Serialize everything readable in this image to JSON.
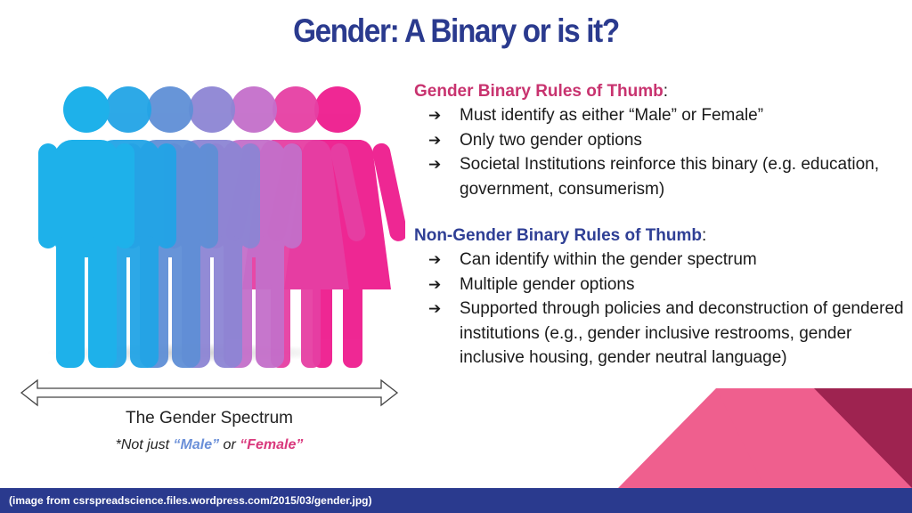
{
  "title": "Gender: A Binary or is it?",
  "illustration": {
    "figure_colors": [
      "#1eb1ea",
      "#22a4e6",
      "#5f8fd6",
      "#8d85d4",
      "#c46fca",
      "#e63fa3",
      "#ee1c8e"
    ]
  },
  "spectrum": {
    "label": "The Gender Spectrum",
    "note_prefix": "*Not just ",
    "note_male": "“Male”",
    "note_middle": " or ",
    "note_female": "“Female”"
  },
  "binary_rules": {
    "heading": "Gender Binary Rules of Thumb",
    "colon": ":",
    "arrow": "➔",
    "items": [
      "Must identify as either “Male” or Female”",
      "Only two gender options",
      "Societal Institutions reinforce this binary (e.g. education, government, consumerism)"
    ]
  },
  "nonbinary_rules": {
    "heading": "Non-Gender Binary Rules of Thumb",
    "colon": ":",
    "arrow": "➔",
    "items": [
      "Can identify within the gender spectrum",
      "Multiple gender options",
      "Supported through policies and deconstruction of gendered institutions (e.g., gender inclusive restrooms, gender inclusive housing, gender neutral language)"
    ]
  },
  "footer": {
    "text": "(image from csrspreadscience.files.wordpress.com/2015/03/gender.jpg)"
  },
  "colors": {
    "title": "#2a3a8e",
    "binary_heading": "#c8336f",
    "nonbinary_heading": "#2f3f95",
    "footer_bg": "#2a3a8e",
    "deco_light": "#ef5f8e",
    "deco_mid": "#d94a7c",
    "deco_dark": "#9e2350"
  }
}
